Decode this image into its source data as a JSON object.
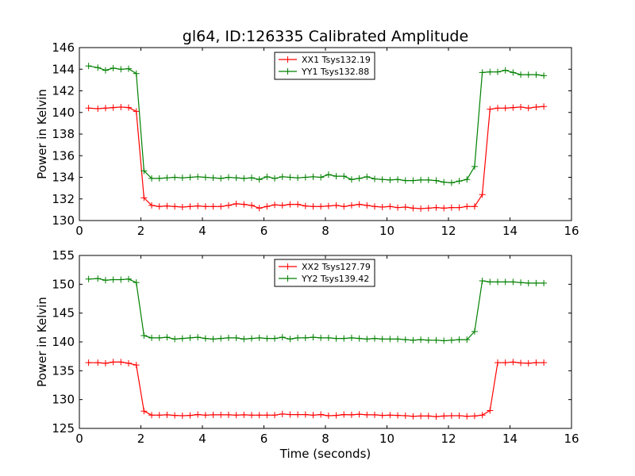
{
  "chart_data": [
    {
      "type": "line",
      "title": "gl64, ID:126335 Calibrated Amplitude",
      "xlabel": "",
      "ylabel": "Power in Kelvin",
      "xlim": [
        0,
        16
      ],
      "ylim": [
        130,
        146
      ],
      "xticks": [
        0,
        2,
        4,
        6,
        8,
        10,
        12,
        14,
        16
      ],
      "yticks": [
        130,
        132,
        134,
        136,
        138,
        140,
        142,
        144,
        146
      ],
      "grid": false,
      "legend": "top-center",
      "x": [
        0.3,
        0.6,
        0.85,
        1.1,
        1.35,
        1.6,
        1.85,
        2.1,
        2.35,
        2.6,
        2.85,
        3.1,
        3.35,
        3.6,
        3.85,
        4.1,
        4.35,
        4.6,
        4.85,
        5.1,
        5.35,
        5.6,
        5.85,
        6.1,
        6.35,
        6.6,
        6.85,
        7.1,
        7.35,
        7.6,
        7.85,
        8.1,
        8.35,
        8.6,
        8.85,
        9.1,
        9.35,
        9.6,
        9.85,
        10.1,
        10.35,
        10.6,
        10.85,
        11.1,
        11.35,
        11.6,
        11.85,
        12.1,
        12.35,
        12.6,
        12.85,
        13.1,
        13.35,
        13.6,
        13.85,
        14.1,
        14.35,
        14.6,
        14.85,
        15.1
      ],
      "series": [
        {
          "name": "XX1 Tsys132.19",
          "color": "#ff0000",
          "values": [
            140.4,
            140.35,
            140.4,
            140.45,
            140.5,
            140.45,
            140.1,
            132.1,
            131.4,
            131.3,
            131.35,
            131.3,
            131.25,
            131.3,
            131.35,
            131.3,
            131.3,
            131.3,
            131.4,
            131.55,
            131.5,
            131.4,
            131.15,
            131.3,
            131.45,
            131.4,
            131.5,
            131.5,
            131.35,
            131.3,
            131.3,
            131.35,
            131.4,
            131.3,
            131.4,
            131.5,
            131.4,
            131.3,
            131.25,
            131.3,
            131.2,
            131.25,
            131.15,
            131.1,
            131.15,
            131.2,
            131.15,
            131.2,
            131.2,
            131.3,
            131.3,
            132.4,
            140.3,
            140.4,
            140.4,
            140.45,
            140.5,
            140.4,
            140.5,
            140.55
          ]
        },
        {
          "name": "YY1 Tsys132.88",
          "color": "#008000",
          "values": [
            144.3,
            144.15,
            143.9,
            144.1,
            144.0,
            144.05,
            143.6,
            134.6,
            133.9,
            133.9,
            133.95,
            134.0,
            133.95,
            134.0,
            134.05,
            134.0,
            133.95,
            133.9,
            134.0,
            133.95,
            133.9,
            133.95,
            133.8,
            134.05,
            133.9,
            134.05,
            134.0,
            133.95,
            134.0,
            134.05,
            134.0,
            134.25,
            134.1,
            134.1,
            133.8,
            133.9,
            134.05,
            133.85,
            133.8,
            133.75,
            133.8,
            133.7,
            133.7,
            133.75,
            133.75,
            133.7,
            133.55,
            133.5,
            133.65,
            133.8,
            135.0,
            143.7,
            143.75,
            143.75,
            143.9,
            143.7,
            143.5,
            143.5,
            143.5,
            143.4
          ]
        }
      ]
    },
    {
      "type": "line",
      "title": "",
      "xlabel": "Time (seconds)",
      "ylabel": "Power in Kelvin",
      "xlim": [
        0,
        16
      ],
      "ylim": [
        125,
        155
      ],
      "xticks": [
        0,
        2,
        4,
        6,
        8,
        10,
        12,
        14,
        16
      ],
      "yticks": [
        125,
        130,
        135,
        140,
        145,
        150,
        155
      ],
      "grid": false,
      "legend": "top-center",
      "x": [
        0.3,
        0.6,
        0.85,
        1.1,
        1.35,
        1.6,
        1.85,
        2.1,
        2.35,
        2.6,
        2.85,
        3.1,
        3.35,
        3.6,
        3.85,
        4.1,
        4.35,
        4.6,
        4.85,
        5.1,
        5.35,
        5.6,
        5.85,
        6.1,
        6.35,
        6.6,
        6.85,
        7.1,
        7.35,
        7.6,
        7.85,
        8.1,
        8.35,
        8.6,
        8.85,
        9.1,
        9.35,
        9.6,
        9.85,
        10.1,
        10.35,
        10.6,
        10.85,
        11.1,
        11.35,
        11.6,
        11.85,
        12.1,
        12.35,
        12.6,
        12.85,
        13.1,
        13.35,
        13.6,
        13.85,
        14.1,
        14.35,
        14.6,
        14.85,
        15.1
      ],
      "series": [
        {
          "name": "XX2 Tsys127.79",
          "color": "#ff0000",
          "values": [
            136.4,
            136.4,
            136.3,
            136.5,
            136.5,
            136.3,
            136.0,
            128.0,
            127.3,
            127.3,
            127.35,
            127.25,
            127.2,
            127.25,
            127.4,
            127.3,
            127.35,
            127.35,
            127.35,
            127.3,
            127.35,
            127.3,
            127.3,
            127.3,
            127.3,
            127.5,
            127.4,
            127.4,
            127.4,
            127.3,
            127.4,
            127.2,
            127.25,
            127.4,
            127.35,
            127.45,
            127.35,
            127.35,
            127.25,
            127.3,
            127.25,
            127.2,
            127.1,
            127.15,
            127.15,
            127.05,
            127.15,
            127.2,
            127.2,
            127.1,
            127.15,
            127.3,
            128.1,
            136.4,
            136.4,
            136.5,
            136.35,
            136.3,
            136.4,
            136.4
          ]
        },
        {
          "name": "YY2 Tsys139.42",
          "color": "#008000",
          "values": [
            150.9,
            151.0,
            150.7,
            150.8,
            150.8,
            150.9,
            150.3,
            141.1,
            140.7,
            140.7,
            140.8,
            140.5,
            140.6,
            140.7,
            140.8,
            140.6,
            140.5,
            140.6,
            140.7,
            140.7,
            140.5,
            140.6,
            140.7,
            140.6,
            140.6,
            140.8,
            140.5,
            140.7,
            140.7,
            140.8,
            140.7,
            140.7,
            140.6,
            140.6,
            140.7,
            140.6,
            140.5,
            140.6,
            140.5,
            140.5,
            140.5,
            140.4,
            140.3,
            140.4,
            140.3,
            140.3,
            140.2,
            140.3,
            140.4,
            140.4,
            141.8,
            150.6,
            150.4,
            150.4,
            150.4,
            150.4,
            150.3,
            150.2,
            150.2,
            150.2
          ]
        }
      ]
    }
  ]
}
